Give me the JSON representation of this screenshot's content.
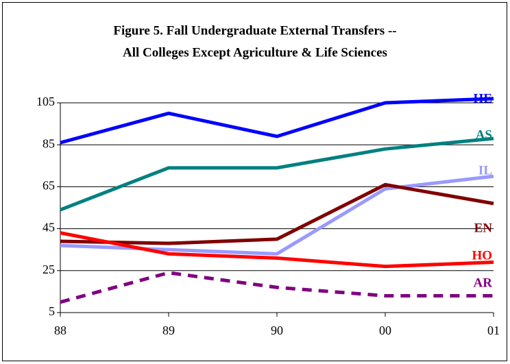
{
  "chart_data": {
    "type": "line",
    "title": [
      "Figure 5. Fall Undergraduate External Transfers --",
      "All Colleges Except Agriculture & Life Sciences"
    ],
    "categories": [
      "88",
      "89",
      "90",
      "00",
      "01"
    ],
    "series": [
      {
        "name": "HE",
        "color": "#0000ff",
        "values": [
          86,
          100,
          89,
          105,
          107
        ]
      },
      {
        "name": "AS",
        "color": "#008080",
        "values": [
          54,
          74,
          74,
          83,
          88
        ]
      },
      {
        "name": "IL",
        "color": "#9999ff",
        "values": [
          37,
          35,
          33,
          64,
          70
        ]
      },
      {
        "name": "EN",
        "color": "#800000",
        "values": [
          39,
          38,
          40,
          66,
          57
        ]
      },
      {
        "name": "HO",
        "color": "#ff0000",
        "values": [
          43,
          33,
          31,
          27,
          29
        ]
      },
      {
        "name": "AR",
        "color": "#800080",
        "dashed": true,
        "values": [
          10,
          24,
          17,
          13,
          13
        ]
      }
    ],
    "ylim": [
      5,
      105
    ],
    "yticks": [
      5,
      25,
      45,
      65,
      85,
      105
    ],
    "grid": true
  }
}
